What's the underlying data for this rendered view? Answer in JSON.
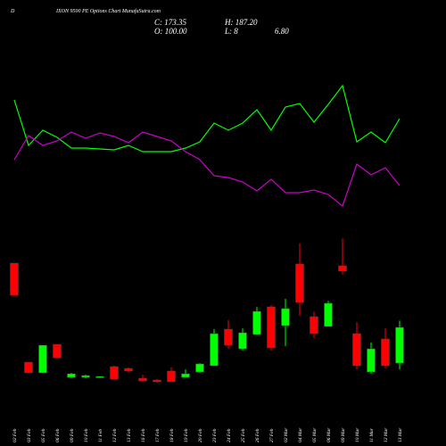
{
  "chart_data": {
    "type": "candlestick",
    "symbol_initial": "D",
    "title": "IXON 9500 PE Options Chart MunafaSutra.com",
    "close_label": "C: 173.35",
    "high_label": "H: 187.20",
    "open_label": "O: 100.00",
    "low_label": "L: 8",
    "low_label_tail": "6.80",
    "categories": [
      "02 Feb",
      "03 Feb",
      "05 Feb",
      "06 Feb",
      "09 Feb",
      "10 Feb",
      "11 Feb",
      "12 Feb",
      "13 Feb",
      "16 Feb",
      "17 Feb",
      "18 Feb",
      "19 Feb",
      "20 Feb",
      "23 Feb",
      "24 Feb",
      "25 Feb",
      "26 Feb",
      "27 Feb",
      "02 Mar",
      "04 Mar",
      "05 Mar",
      "06 Mar",
      "09 Mar",
      "10 Mar",
      "11 Mar",
      "12 Mar",
      "13 Mar"
    ],
    "open": [
      305.4,
      101.8,
      79.8,
      138.5,
      70.7,
      70.7,
      70.7,
      92.7,
      89,
      68.8,
      65,
      83.5,
      70.7,
      81.7,
      94.5,
      169.7,
      129.3,
      158.7,
      215.5,
      177,
      303.6,
      195.4,
      175.2,
      300,
      160.5,
      81.7,
      149.5,
      100
    ],
    "close": [
      239.4,
      79.8,
      136.7,
      111,
      78,
      74.3,
      72.5,
      67,
      83.5,
      63.3,
      61.5,
      61.5,
      78,
      98.2,
      160.5,
      136.7,
      162.4,
      206.4,
      131.2,
      211.9,
      224.7,
      160.5,
      222.9,
      289,
      94.5,
      129.3,
      94.5,
      173.35
    ],
    "high": [
      305.4,
      101.8,
      136.7,
      138.5,
      79.8,
      76.1,
      72.5,
      94.5,
      91,
      76,
      67,
      91,
      87,
      100,
      170,
      188,
      171,
      215,
      219,
      232,
      346,
      206,
      228,
      356,
      184,
      142.2,
      171,
      187.2
    ],
    "low": [
      239.4,
      79.8,
      79.8,
      111,
      68.8,
      68.8,
      70.7,
      67,
      80,
      63.3,
      59.7,
      61.5,
      70.7,
      80,
      94.5,
      129,
      125.6,
      158.7,
      125.6,
      134.8,
      197,
      151.3,
      175.2,
      282,
      87,
      78,
      89,
      86.8
    ],
    "up_color": "#00ff00",
    "down_color": "#ff0000",
    "ylim": [
      39.5,
      406.3
    ],
    "overlay": [
      {
        "color": "#00ff00",
        "values": [
          138,
          87,
          104,
          96,
          84,
          84,
          83,
          82,
          87,
          80,
          80,
          80,
          84,
          91,
          112,
          104,
          112,
          127,
          104,
          130,
          134,
          113,
          133,
          154,
          91,
          102,
          90,
          117
        ]
      },
      {
        "color": "#cc00cc",
        "values": [
          71,
          98,
          87,
          92,
          102,
          95,
          101,
          97,
          90,
          102,
          97,
          92,
          80,
          71,
          53,
          51,
          46,
          36,
          49,
          34,
          34,
          37,
          32,
          19,
          66,
          54,
          62,
          42
        ]
      }
    ],
    "overlay_ylim": [
      0,
      250
    ]
  }
}
